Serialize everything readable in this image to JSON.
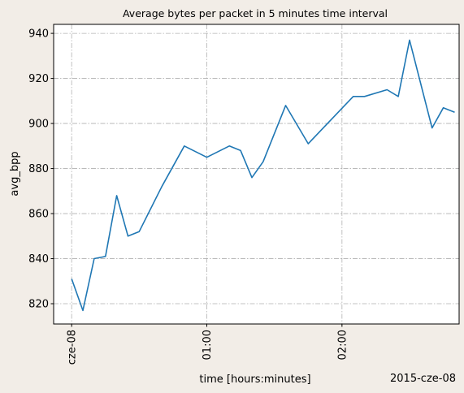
{
  "chart_data": {
    "type": "line",
    "title": "Average bytes per packet in 5 minutes time interval",
    "xlabel": "time [hours:minutes]",
    "ylabel": "avg_bpp",
    "x_offset_label": "2015-cze-08",
    "x_ticks": [
      {
        "minutes": 0,
        "label": "cze-08"
      },
      {
        "minutes": 60,
        "label": "01:00"
      },
      {
        "minutes": 120,
        "label": "02:00"
      }
    ],
    "y_ticks": [
      820,
      840,
      860,
      880,
      900,
      920,
      940
    ],
    "xlim": [
      -8,
      172
    ],
    "ylim": [
      811,
      944
    ],
    "grid": true,
    "series": [
      {
        "color": "#1f77b4",
        "x": [
          0,
          5,
          10,
          15,
          20,
          25,
          30,
          40,
          50,
          60,
          70,
          75,
          80,
          85,
          95,
          105,
          125,
          130,
          140,
          145,
          150,
          160,
          165,
          170
        ],
        "y": [
          831,
          817,
          840,
          841,
          868,
          850,
          852,
          872,
          890,
          885,
          890,
          888,
          876,
          883,
          908,
          891,
          912,
          912,
          915,
          912,
          937,
          898,
          907,
          905
        ]
      }
    ]
  }
}
